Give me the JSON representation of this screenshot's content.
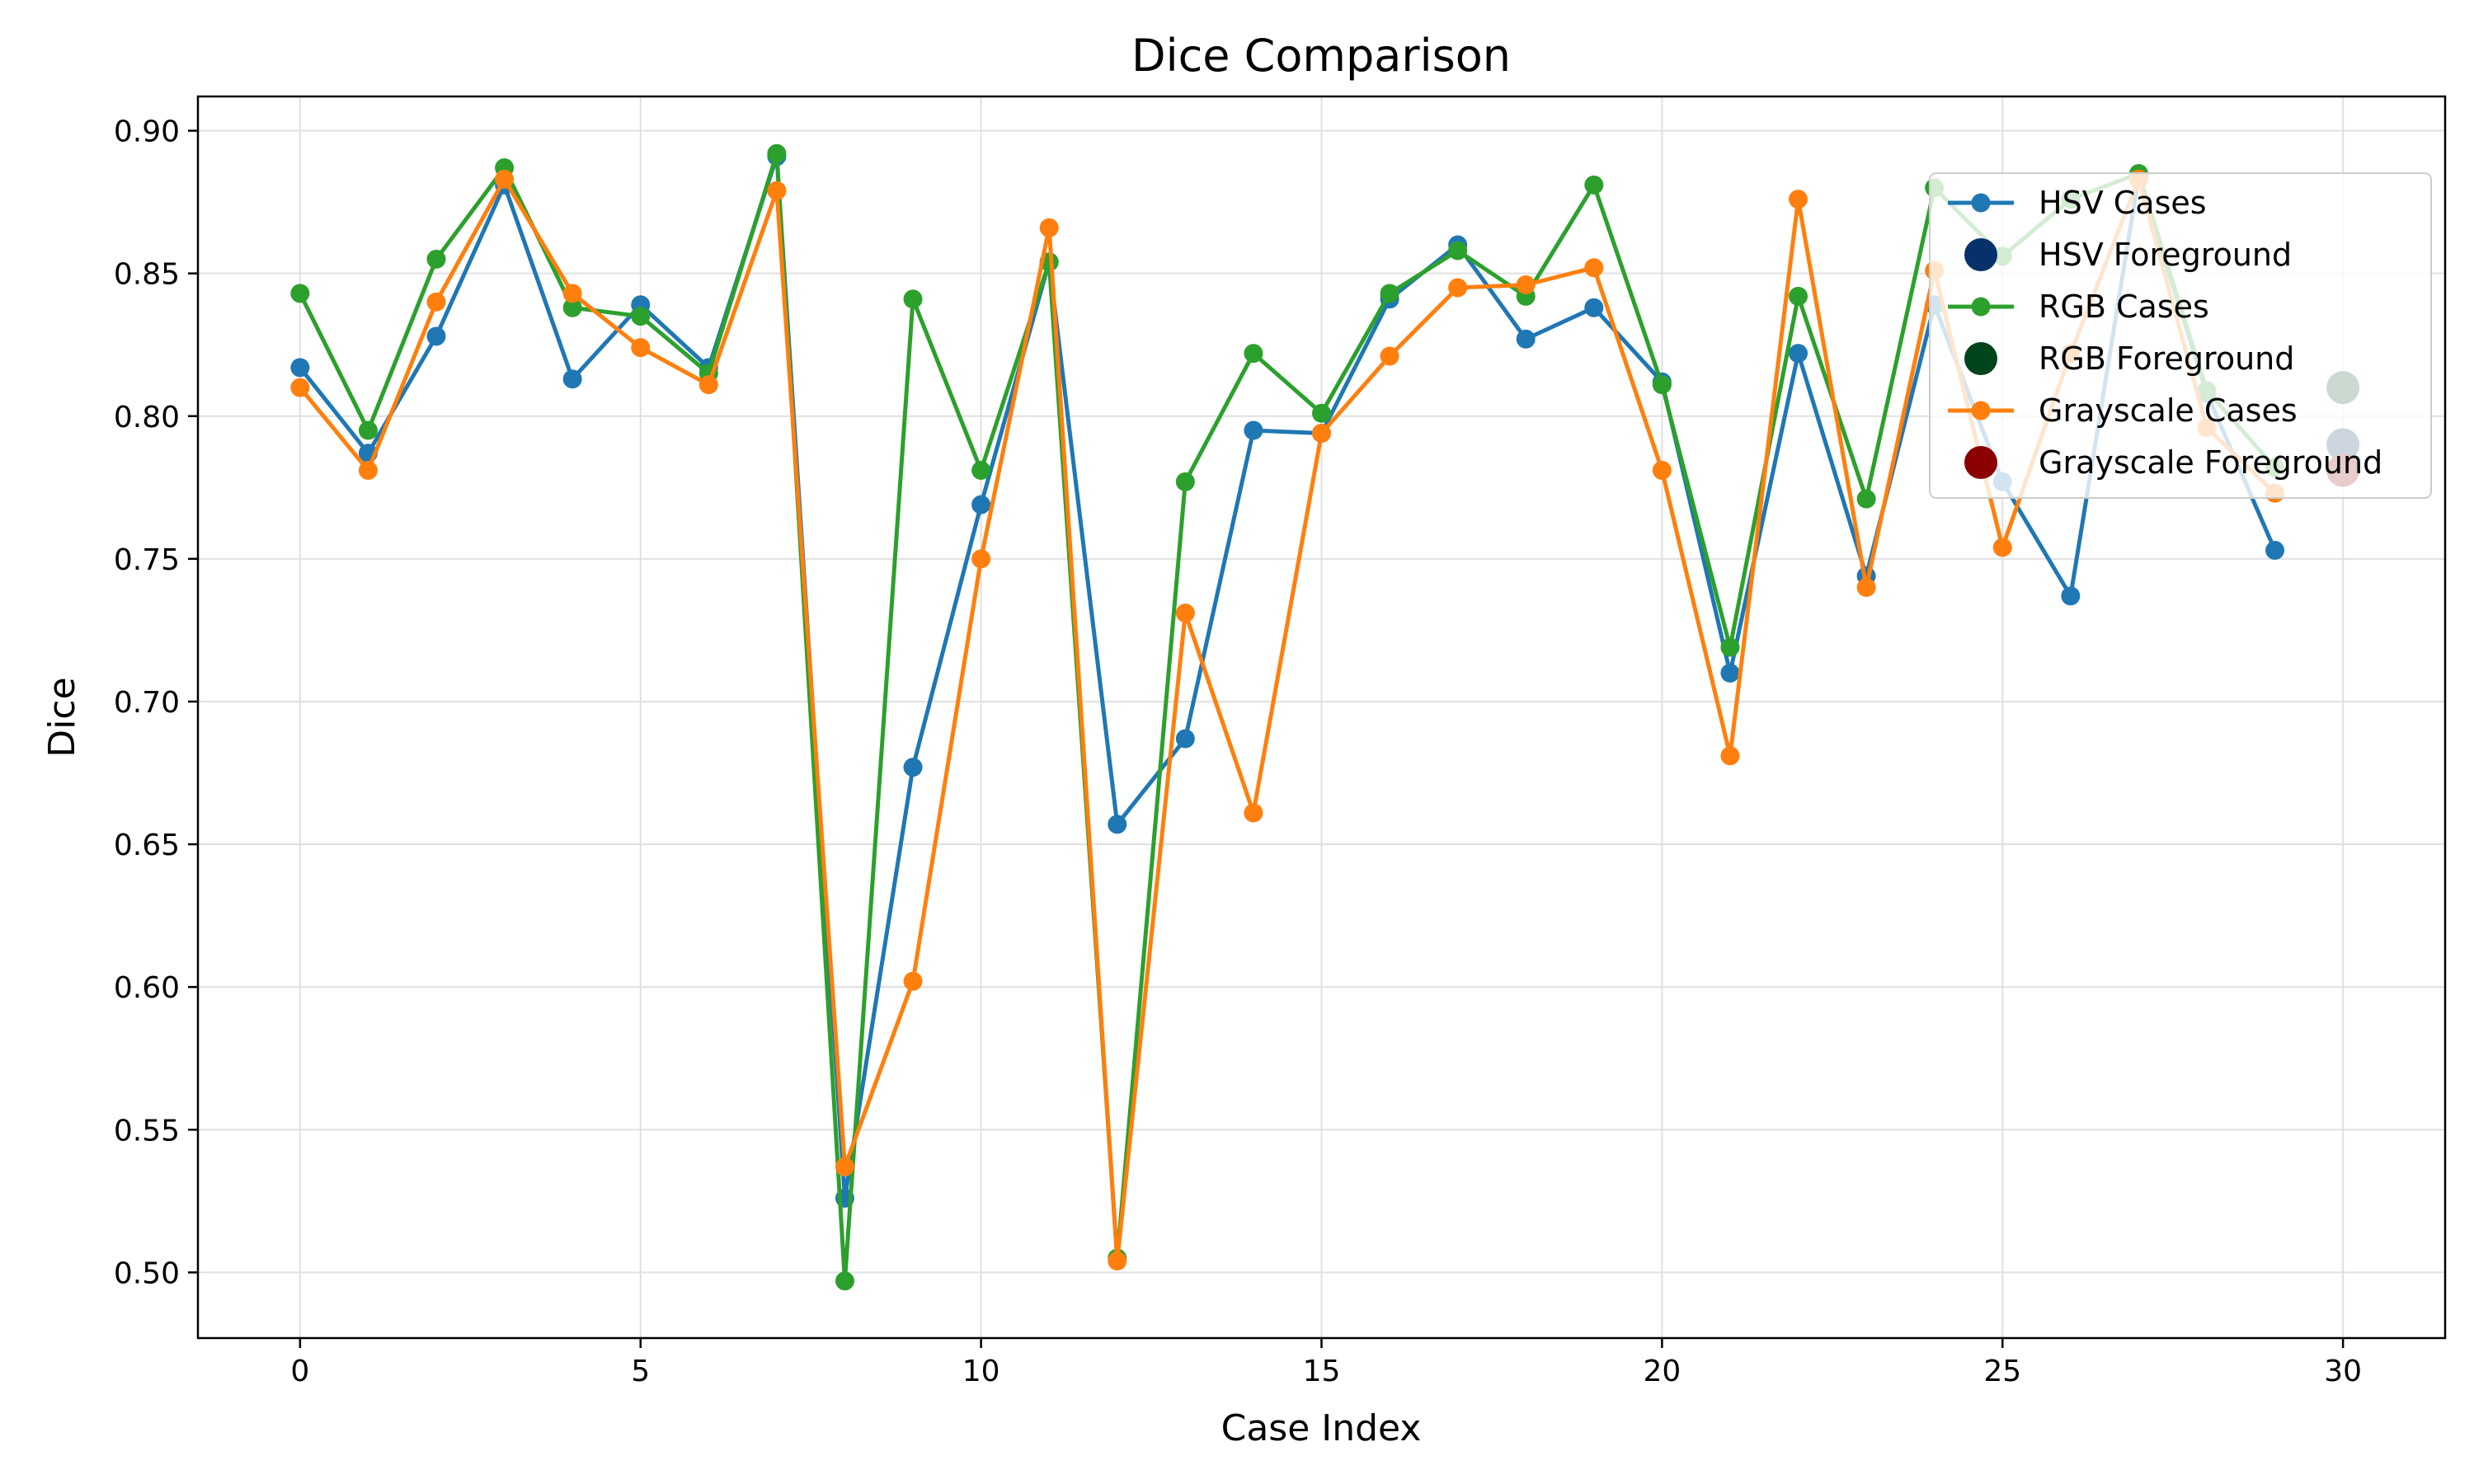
{
  "chart_data": {
    "type": "line",
    "title": "Dice Comparison",
    "xlabel": "Case Index",
    "ylabel": "Dice",
    "xlim": [
      -1.5,
      31.5
    ],
    "ylim": [
      0.477,
      0.912
    ],
    "xticks": [
      0,
      5,
      10,
      15,
      20,
      25,
      30
    ],
    "yticks": [
      0.5,
      0.55,
      0.6,
      0.65,
      0.7,
      0.75,
      0.8,
      0.85,
      0.9
    ],
    "ytick_labels": [
      "0.50",
      "0.55",
      "0.60",
      "0.65",
      "0.70",
      "0.75",
      "0.80",
      "0.85",
      "0.90"
    ],
    "grid": true,
    "legend_position": "upper-right",
    "series": [
      {
        "name": "HSV Cases",
        "kind": "line",
        "color": "#1f77b4",
        "x": [
          0,
          1,
          2,
          3,
          4,
          5,
          6,
          7,
          8,
          9,
          10,
          11,
          12,
          13,
          14,
          15,
          16,
          17,
          18,
          19,
          20,
          21,
          22,
          23,
          24,
          25,
          26,
          27,
          28,
          29
        ],
        "values": [
          0.817,
          0.787,
          0.828,
          0.881,
          0.813,
          0.839,
          0.817,
          0.891,
          0.526,
          0.677,
          0.769,
          0.854,
          0.657,
          0.687,
          0.795,
          0.794,
          0.841,
          0.86,
          0.827,
          0.838,
          0.812,
          0.71,
          0.822,
          0.744,
          0.839,
          0.777,
          0.737,
          0.884,
          0.808,
          0.753
        ]
      },
      {
        "name": "HSV Foreground",
        "kind": "point",
        "color": "#08306b",
        "x": [
          30
        ],
        "values": [
          0.79
        ]
      },
      {
        "name": "RGB Cases",
        "kind": "line",
        "color": "#2ca02c",
        "x": [
          0,
          1,
          2,
          3,
          4,
          5,
          6,
          7,
          8,
          9,
          10,
          11,
          12,
          13,
          14,
          15,
          16,
          17,
          18,
          19,
          20,
          21,
          22,
          23,
          24,
          25,
          26,
          27,
          28,
          29
        ],
        "values": [
          0.843,
          0.795,
          0.855,
          0.887,
          0.838,
          0.835,
          0.815,
          0.892,
          0.497,
          0.841,
          0.781,
          0.854,
          0.505,
          0.777,
          0.822,
          0.801,
          0.843,
          0.858,
          0.842,
          0.881,
          0.811,
          0.719,
          0.842,
          0.771,
          0.88,
          0.856,
          0.876,
          0.885,
          0.809,
          0.782
        ]
      },
      {
        "name": "RGB Foreground",
        "kind": "point",
        "color": "#00441b",
        "x": [
          30
        ],
        "values": [
          0.81
        ]
      },
      {
        "name": "Grayscale Cases",
        "kind": "line",
        "color": "#ff7f0e",
        "x": [
          0,
          1,
          2,
          3,
          4,
          5,
          6,
          7,
          8,
          9,
          10,
          11,
          12,
          13,
          14,
          15,
          16,
          17,
          18,
          19,
          20,
          21,
          22,
          23,
          24,
          25,
          26,
          27,
          28,
          29
        ],
        "values": [
          0.81,
          0.781,
          0.84,
          0.883,
          0.843,
          0.824,
          0.811,
          0.879,
          0.537,
          0.602,
          0.75,
          0.866,
          0.504,
          0.731,
          0.661,
          0.794,
          0.821,
          0.845,
          0.846,
          0.852,
          0.781,
          0.681,
          0.876,
          0.74,
          0.851,
          0.754,
          0.822,
          0.883,
          0.796,
          0.773
        ]
      },
      {
        "name": "Grayscale Foreground",
        "kind": "point",
        "color": "#8b0000",
        "x": [
          30
        ],
        "values": [
          0.781
        ]
      }
    ]
  }
}
